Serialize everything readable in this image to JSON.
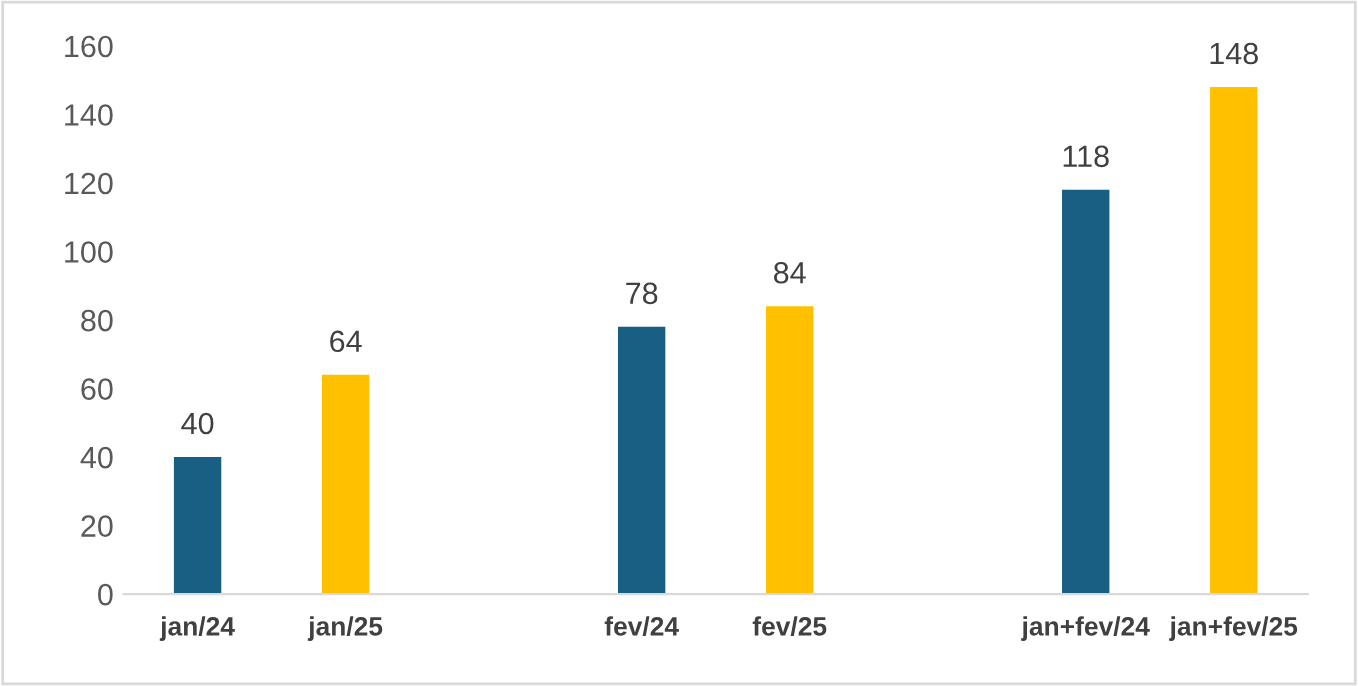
{
  "chart_data": {
    "type": "bar",
    "categories": [
      "jan/24",
      "jan/25",
      null,
      "fev/24",
      "fev/25",
      null,
      "jan+fev/24",
      "jan+fev/25"
    ],
    "values": [
      40,
      64,
      null,
      78,
      84,
      null,
      118,
      148
    ],
    "colors": [
      "#195e83",
      "#ffc000",
      null,
      "#195e83",
      "#ffc000",
      null,
      "#195e83",
      "#ffc000"
    ],
    "ylim": [
      0,
      160
    ],
    "yticks": [
      0,
      20,
      40,
      60,
      80,
      100,
      120,
      140,
      160
    ],
    "data_labels": true,
    "grid": false
  }
}
